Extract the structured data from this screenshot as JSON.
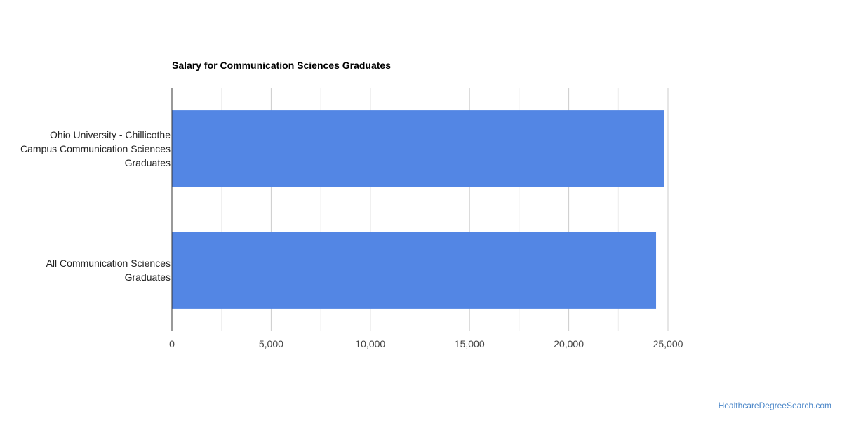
{
  "chart_data": {
    "type": "bar",
    "orientation": "horizontal",
    "title": "Salary for Communication Sciences Graduates",
    "categories": [
      "Ohio University - Chillicothe Campus Communication Sciences Graduates",
      "All Communication Sciences Graduates"
    ],
    "category_lines": [
      [
        "Ohio University - Chillicothe",
        "Campus Communication Sciences",
        "Graduates"
      ],
      [
        "All Communication Sciences",
        "Graduates"
      ]
    ],
    "values": [
      24800,
      24400
    ],
    "xlim": [
      0,
      25000
    ],
    "xticks": [
      0,
      5000,
      10000,
      15000,
      20000,
      25000
    ],
    "xtick_labels": [
      "0",
      "5,000",
      "10,000",
      "15,000",
      "20,000",
      "25,000"
    ],
    "xlabel": "",
    "ylabel": "",
    "grid": true,
    "legend": "none",
    "bar_color": "#5386e4"
  },
  "credit": "HealthcareDegreeSearch.com"
}
